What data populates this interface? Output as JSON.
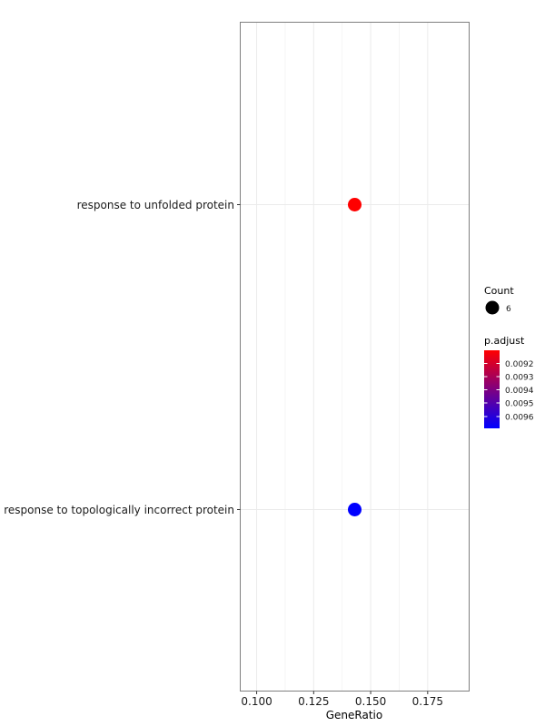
{
  "chart_data": {
    "type": "scatter",
    "xlabel": "GeneRatio",
    "ylabel": "",
    "xlim": [
      0.093,
      0.193
    ],
    "x_ticks": [
      "0.100",
      "0.125",
      "0.150",
      "0.175"
    ],
    "x_tick_values": [
      0.1,
      0.125,
      0.15,
      0.175
    ],
    "grid": true,
    "categories": [
      "response to unfolded protein",
      "response to topologically incorrect protein"
    ],
    "points": [
      {
        "term": "response to unfolded protein",
        "x": 0.143,
        "count": 6,
        "p_adjust": 0.00915,
        "color": "#ff0000"
      },
      {
        "term": "response to topologically incorrect protein",
        "x": 0.143,
        "count": 6,
        "p_adjust": 0.00965,
        "color": "#0000ff"
      }
    ],
    "legend": {
      "placement": "right",
      "size_title": "Count",
      "size_entries": [
        "6"
      ],
      "color_title": "p.adjust",
      "color_ticks": [
        "0.0092",
        "0.0093",
        "0.0094",
        "0.0095",
        "0.0096"
      ],
      "color_low": "#ff0000",
      "color_high": "#0000ff"
    }
  }
}
